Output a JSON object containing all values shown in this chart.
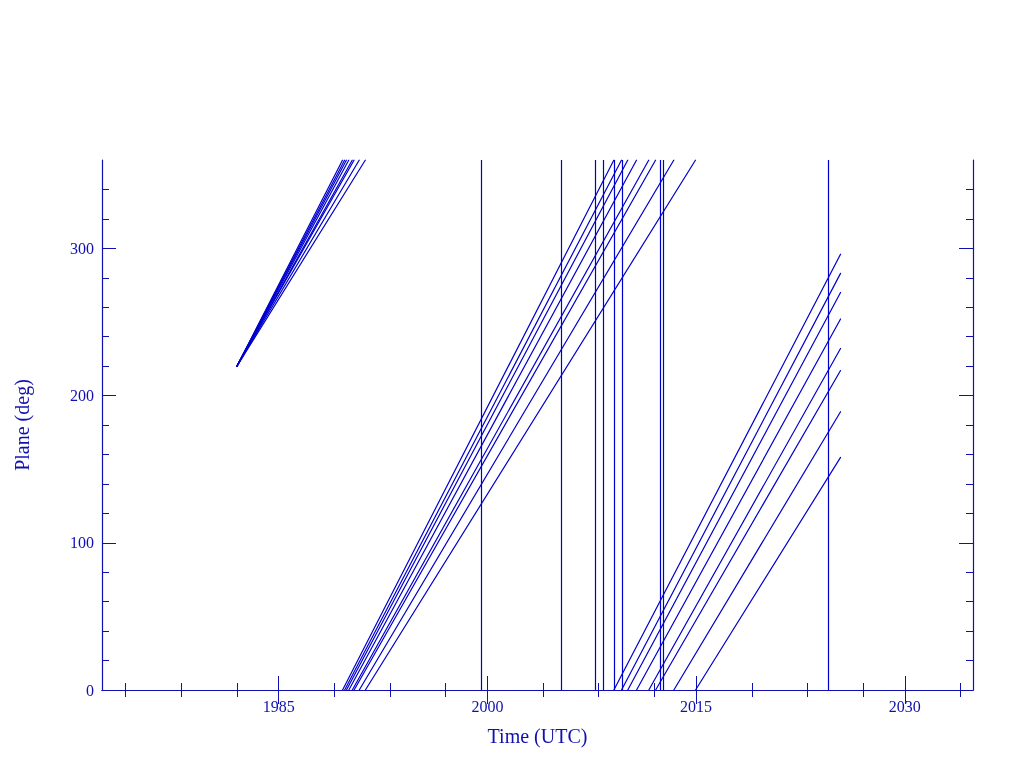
{
  "chart_data": {
    "type": "line",
    "xlabel": "Time (UTC)",
    "ylabel": "Plane (deg)",
    "xlim": [
      1972.3,
      2034.9
    ],
    "ylim": [
      0,
      360
    ],
    "xticks": [
      {
        "value": 1974,
        "label": null
      },
      {
        "value": 1978,
        "label": null
      },
      {
        "value": 1982,
        "label": null
      },
      1985,
      {
        "value": 1989,
        "label": null
      },
      {
        "value": 1993,
        "label": null
      },
      {
        "value": 1997,
        "label": null
      },
      2000,
      {
        "value": 2004,
        "label": null
      },
      {
        "value": 2008,
        "label": null
      },
      {
        "value": 2012,
        "label": null
      },
      2015,
      {
        "value": 2019,
        "label": null
      },
      {
        "value": 2023,
        "label": null
      },
      {
        "value": 2027,
        "label": null
      },
      2030,
      {
        "value": 2034,
        "label": null
      }
    ],
    "yticks": [
      0,
      {
        "value": 20,
        "label": null
      },
      {
        "value": 40,
        "label": null
      },
      {
        "value": 60,
        "label": null
      },
      {
        "value": 80,
        "label": null
      },
      100,
      {
        "value": 120,
        "label": null
      },
      {
        "value": 140,
        "label": null
      },
      {
        "value": 160,
        "label": null
      },
      {
        "value": 180,
        "label": null
      },
      200,
      {
        "value": 220,
        "label": null
      },
      {
        "value": 240,
        "label": null
      },
      {
        "value": 260,
        "label": null
      },
      {
        "value": 280,
        "label": null
      },
      300,
      {
        "value": 320,
        "label": null
      },
      {
        "value": 340,
        "label": null
      }
    ],
    "marker": "none",
    "line_style": "solid",
    "series": [
      {
        "color": "#0000cc",
        "x": [
          1982.0,
          1989.59
        ],
        "values": [
          220,
          360
        ]
      },
      {
        "color": "#0000cc",
        "x": [
          1982.0,
          1989.74
        ],
        "values": [
          220,
          360
        ]
      },
      {
        "color": "#0000cc",
        "x": [
          1982.0,
          1989.87
        ],
        "values": [
          220,
          360
        ]
      },
      {
        "color": "#0000cc",
        "x": [
          1982.0,
          1990.04
        ],
        "values": [
          220,
          360
        ]
      },
      {
        "color": "#0000cc",
        "x": [
          1982.0,
          1990.29
        ],
        "values": [
          220,
          360
        ]
      },
      {
        "color": "#0000cc",
        "x": [
          1982.0,
          1990.42
        ],
        "values": [
          220,
          360
        ]
      },
      {
        "color": "#0000cc",
        "x": [
          1982.0,
          1990.79
        ],
        "values": [
          220,
          360
        ]
      },
      {
        "color": "#0000cc",
        "x": [
          1982.0,
          1991.23
        ],
        "values": [
          220,
          360
        ]
      },
      {
        "color": "#0000cc",
        "x": [
          1989.59,
          2009.09
        ],
        "values": [
          0,
          360
        ]
      },
      {
        "color": "#0000cc",
        "x": [
          1989.74,
          2009.64
        ],
        "values": [
          0,
          360
        ]
      },
      {
        "color": "#0000cc",
        "x": [
          1989.87,
          2010.09
        ],
        "values": [
          0,
          360
        ]
      },
      {
        "color": "#0000cc",
        "x": [
          1990.04,
          2010.72
        ],
        "values": [
          0,
          360
        ]
      },
      {
        "color": "#0000cc",
        "x": [
          1990.29,
          2011.6
        ],
        "values": [
          0,
          360
        ]
      },
      {
        "color": "#0000cc",
        "x": [
          1990.42,
          2012.09
        ],
        "values": [
          0,
          360
        ]
      },
      {
        "color": "#0000cc",
        "x": [
          1990.79,
          2013.4
        ],
        "values": [
          0,
          360
        ]
      },
      {
        "color": "#0000cc",
        "x": [
          1991.23,
          2014.96
        ],
        "values": [
          0,
          360
        ]
      },
      {
        "color": "#0000cc",
        "x": [
          2009.09,
          2025.38
        ],
        "values": [
          0,
          296
        ]
      },
      {
        "color": "#0000cc",
        "x": [
          2009.64,
          2025.38
        ],
        "values": [
          0,
          283
        ]
      },
      {
        "color": "#0000cc",
        "x": [
          2010.09,
          2025.38
        ],
        "values": [
          0,
          270
        ]
      },
      {
        "color": "#0000cc",
        "x": [
          2010.72,
          2025.38
        ],
        "values": [
          0,
          252
        ]
      },
      {
        "color": "#0000cc",
        "x": [
          2011.6,
          2025.38
        ],
        "values": [
          0,
          232
        ]
      },
      {
        "color": "#0000cc",
        "x": [
          2012.09,
          2025.38
        ],
        "values": [
          0,
          217
        ]
      },
      {
        "color": "#0000cc",
        "x": [
          2013.4,
          2025.38
        ],
        "values": [
          0,
          189
        ]
      },
      {
        "color": "#0000cc",
        "x": [
          2014.96,
          2025.38
        ],
        "values": [
          0,
          158
        ]
      }
    ],
    "ref_lines": [
      {
        "axis": "x",
        "value": 1999.56,
        "color": "#0000cc"
      },
      {
        "axis": "x",
        "value": 2005.31,
        "color": "#0000cc"
      },
      {
        "axis": "x",
        "value": 2007.75,
        "color": "#0000cc"
      },
      {
        "axis": "x",
        "value": 2008.3,
        "color": "#0000cc"
      },
      {
        "axis": "x",
        "value": 2009.09,
        "color": "#0000cc"
      },
      {
        "axis": "x",
        "value": 2009.66,
        "color": "#0000cc"
      },
      {
        "axis": "x",
        "value": 2012.4,
        "color": "#0000cc"
      },
      {
        "axis": "x",
        "value": 2012.61,
        "color": "#0000cc"
      },
      {
        "axis": "x",
        "value": 2024.5,
        "color": "#0000cc"
      }
    ]
  }
}
